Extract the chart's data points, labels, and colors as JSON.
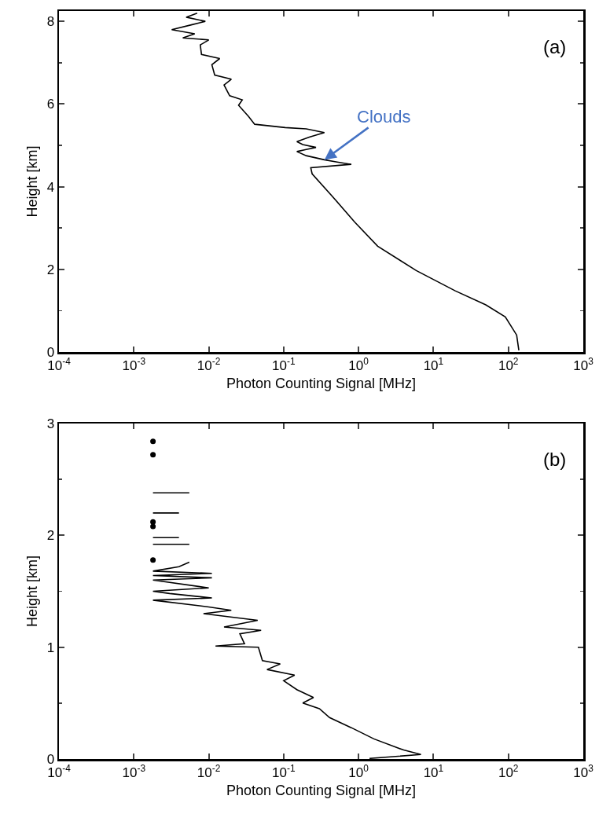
{
  "chart_data": [
    {
      "type": "line",
      "log": "x",
      "xlabel": "Photon Counting Signal [MHz]",
      "ylabel": "Height [km]",
      "xlim": [
        0.0001,
        1000
      ],
      "xticks": [
        {
          "value": 0.0001,
          "label": "10$^{-4}$"
        },
        {
          "value": 0.001,
          "label": "10$^{-3}$"
        },
        {
          "value": 0.01,
          "label": "10$^{-2}$"
        },
        {
          "value": 0.1,
          "label": "10$^{-1}$"
        },
        {
          "value": 1,
          "label": "10$^{0}$"
        },
        {
          "value": 10,
          "label": "10$^{1}$"
        },
        {
          "value": 100,
          "label": "10$^{2}$"
        },
        {
          "value": 1000,
          "label": "10$^{3}$"
        }
      ],
      "ylim": [
        0,
        8.25
      ],
      "yticks": [
        0,
        2,
        4,
        6,
        8
      ],
      "annotations": [
        "(a)",
        {
          "text": "Clouds",
          "x": 0.35,
          "y": 4.65
        }
      ],
      "series": [
        {
          "color": "#000000",
          "x": [
            138,
            129,
            91,
            50,
            19.5,
            5.9,
            1.8,
            0.89,
            0.44,
            0.24,
            0.23,
            0.8,
            0.5,
            0.35,
            0.2,
            0.15,
            0.2,
            0.27,
            0.18,
            0.15,
            0.22,
            0.35,
            0.2,
            0.105,
            0.041,
            0.034,
            0.025,
            0.028,
            0.019,
            0.016,
            0.02,
            0.012,
            0.011,
            0.014,
            0.008,
            0.0077,
            0.01,
            0.0045,
            0.0065,
            0.0032,
            0.006,
            0.009,
            0.005,
            0.007
          ],
          "values": [
            0.04,
            0.41,
            0.85,
            1.14,
            1.48,
            1.97,
            2.56,
            3.14,
            3.78,
            4.31,
            4.46,
            4.54,
            4.6,
            4.65,
            4.75,
            4.85,
            4.9,
            4.95,
            5.02,
            5.09,
            5.2,
            5.31,
            5.4,
            5.43,
            5.51,
            5.7,
            5.97,
            6.1,
            6.2,
            6.46,
            6.6,
            6.7,
            6.95,
            7.1,
            7.2,
            7.43,
            7.55,
            7.6,
            7.7,
            7.8,
            7.92,
            8.0,
            8.1,
            8.2
          ]
        }
      ]
    },
    {
      "type": "line",
      "log": "x",
      "xlabel": "Photon Counting Signal [MHz]",
      "ylabel": "Height [km]",
      "xlim": [
        0.0001,
        1000
      ],
      "xticks": [
        {
          "value": 0.0001,
          "label": "10$^{-4}$"
        },
        {
          "value": 0.001,
          "label": "10$^{-3}$"
        },
        {
          "value": 0.01,
          "label": "10$^{-2}$"
        },
        {
          "value": 0.1,
          "label": "10$^{-1}$"
        },
        {
          "value": 1,
          "label": "10$^{0}$"
        },
        {
          "value": 10,
          "label": "10$^{1}$"
        },
        {
          "value": 100,
          "label": "10$^{2}$"
        },
        {
          "value": 1000,
          "label": "10$^{3}$"
        }
      ],
      "ylim": [
        0,
        3
      ],
      "yticks": [
        0,
        1,
        2,
        3
      ],
      "annotations": [
        "(b)"
      ],
      "series": [
        {
          "color": "#000000",
          "x": [
            1.4,
            6.8,
            4,
            1.6,
            0.8,
            0.41,
            0.3,
            0.18,
            0.25,
            0.15,
            0.1,
            0.14,
            0.06,
            0.09,
            0.052,
            0.046,
            0.0123,
            0.03,
            0.026,
            0.05,
            0.016,
            0.045,
            0.0085,
            0.02,
            0.01,
            0.0018,
            0.011,
            0.003,
            0.0018,
            0.01,
            0.0018,
            0.011,
            0.0018,
            0.011,
            0.0018,
            0.004,
            0.0055
          ],
          "values": [
            0.005,
            0.04,
            0.08,
            0.18,
            0.28,
            0.37,
            0.45,
            0.5,
            0.55,
            0.62,
            0.7,
            0.75,
            0.8,
            0.85,
            0.88,
            1.0,
            1.01,
            1.03,
            1.12,
            1.15,
            1.18,
            1.24,
            1.3,
            1.33,
            1.36,
            1.42,
            1.44,
            1.48,
            1.5,
            1.53,
            1.6,
            1.62,
            1.64,
            1.66,
            1.68,
            1.72,
            1.76
          ]
        },
        {
          "color": "#000000",
          "x": [
            0.0018,
            0.0055
          ],
          "values": [
            1.92,
            1.92
          ]
        },
        {
          "color": "#000000",
          "x": [
            0.0018,
            0.004
          ],
          "values": [
            1.98,
            1.98
          ]
        },
        {
          "color": "#000000",
          "x": [
            0.0018,
            0.004
          ],
          "values": [
            2.2,
            2.2
          ]
        },
        {
          "color": "#000000",
          "x": [
            0.0018,
            0.0055
          ],
          "values": [
            2.38,
            2.38
          ]
        },
        {
          "type": "scatter",
          "marker": "circle",
          "color": "#000000",
          "x": [
            0.0018,
            0.0018,
            0.0018,
            0.0018,
            0.0018
          ],
          "values": [
            1.78,
            2.08,
            2.12,
            2.72,
            2.84
          ]
        }
      ]
    }
  ]
}
